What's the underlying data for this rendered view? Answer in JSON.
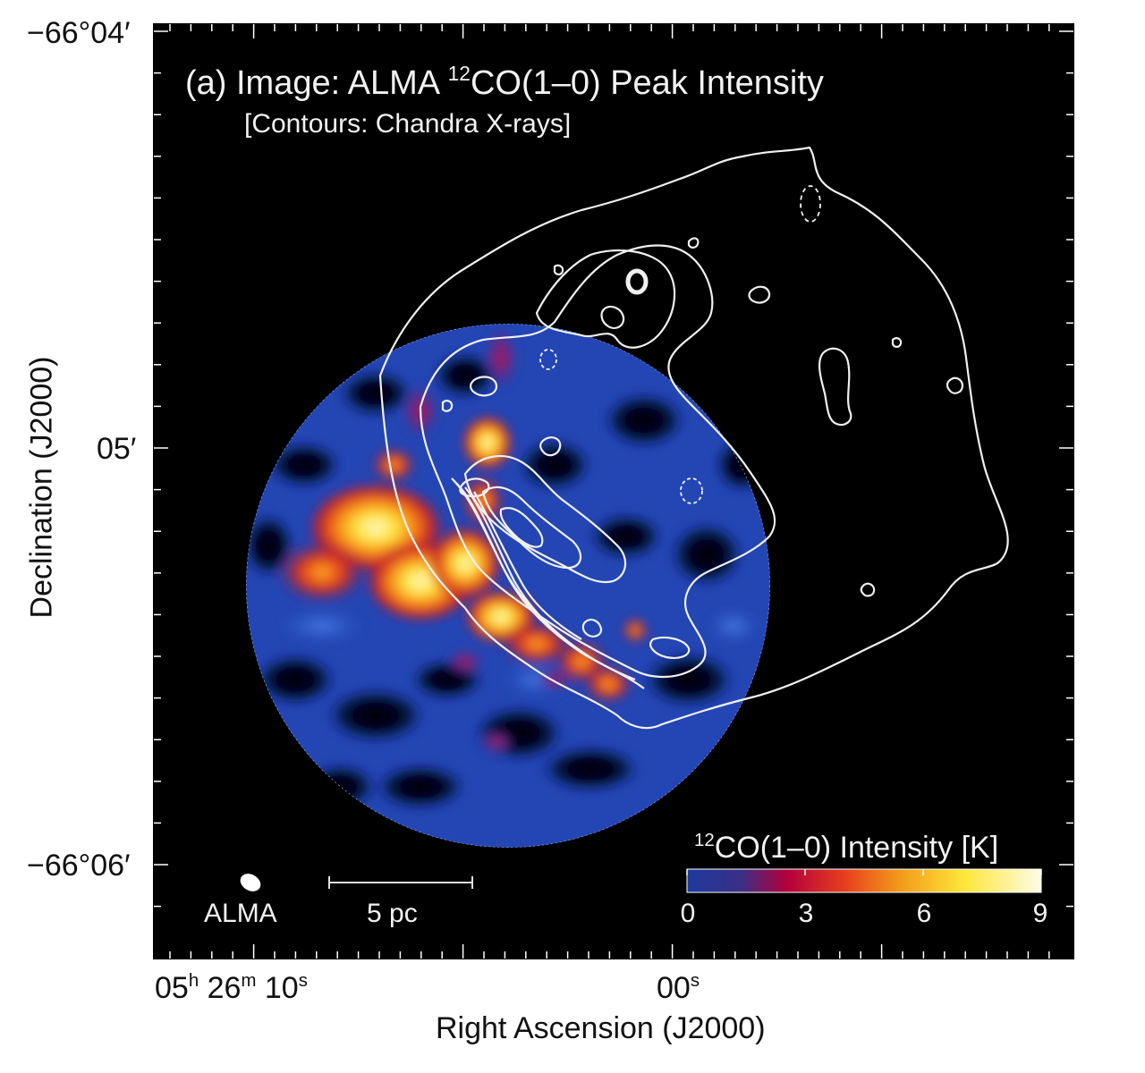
{
  "title": {
    "line1_pre": "(a) Image: ALMA ",
    "line1_sup": "12",
    "line1_post": "CO(1–0) Peak Intensity",
    "line2": "[Contours: Chandra X-rays]"
  },
  "axes": {
    "xlabel": "Right Ascension (J2000)",
    "ylabel": "Declination (J2000)",
    "y_ticks": [
      {
        "label": "−66°04′"
      },
      {
        "label": "05′"
      },
      {
        "label": "−66°06′"
      }
    ],
    "x_ticks": [
      {
        "label_parts": [
          "05",
          "h",
          " 26",
          "m",
          " 10",
          "s"
        ]
      },
      {
        "label_parts": [
          "00",
          "s"
        ]
      }
    ]
  },
  "beam": {
    "label": "ALMA"
  },
  "scalebar": {
    "label": "5 pc"
  },
  "colorbar": {
    "label_sup": "12",
    "label_main": "CO(1–0) Intensity [K]",
    "ticks": [
      "0",
      "3",
      "6",
      "9"
    ],
    "range": [
      0,
      9
    ],
    "colors": [
      "#1e3a9e",
      "#3a2f86",
      "#b3003a",
      "#e8411c",
      "#f29a1a",
      "#fde638",
      "#fffbe6"
    ]
  },
  "colors": {
    "background": "#000000",
    "contours": "#f0f0f0",
    "map_low": "#1f45b0",
    "map_high": "#fff6a0"
  }
}
